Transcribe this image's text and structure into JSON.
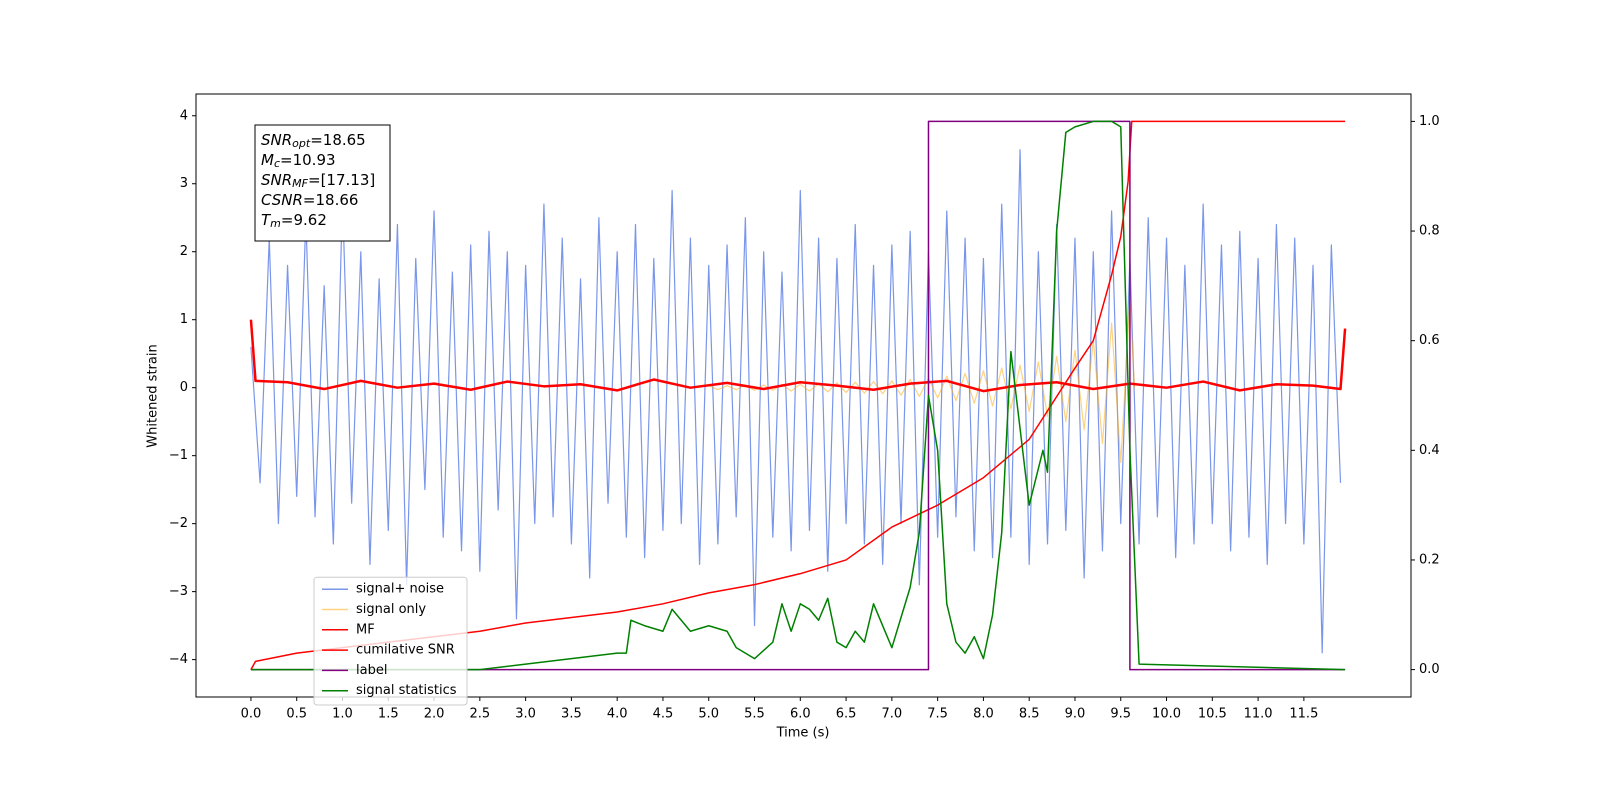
{
  "chart_data": {
    "type": "line",
    "xlabel": "Time (s)",
    "ylabel": "Whitened strain",
    "xlim": [
      -0.6,
      12.67
    ],
    "ylim": [
      -4.55,
      4.32
    ],
    "y2lim": [
      -0.05,
      1.05
    ],
    "xticks": [
      {
        "value": 0,
        "label": "0.0"
      },
      {
        "value": 0.5,
        "label": "0.5"
      },
      {
        "value": 1,
        "label": "1.0"
      },
      {
        "value": 1.5,
        "label": "1.5"
      },
      {
        "value": 2,
        "label": "2.0"
      },
      {
        "value": 2.5,
        "label": "2.5"
      },
      {
        "value": 3,
        "label": "3.0"
      },
      {
        "value": 3.5,
        "label": "3.5"
      },
      {
        "value": 4,
        "label": "4.0"
      },
      {
        "value": 4.5,
        "label": "4.5"
      },
      {
        "value": 5,
        "label": "5.0"
      },
      {
        "value": 5.5,
        "label": "5.5"
      },
      {
        "value": 6,
        "label": "6.0"
      },
      {
        "value": 6.5,
        "label": "6.5"
      },
      {
        "value": 7,
        "label": "7.0"
      },
      {
        "value": 7.5,
        "label": "7.5"
      },
      {
        "value": 8,
        "label": "8.0"
      },
      {
        "value": 8.5,
        "label": "8.5"
      },
      {
        "value": 9,
        "label": "9.0"
      },
      {
        "value": 9.5,
        "label": "9.5"
      },
      {
        "value": 10,
        "label": "10.0"
      },
      {
        "value": 10.5,
        "label": "10.5"
      },
      {
        "value": 11,
        "label": "11.0"
      },
      {
        "value": 11.5,
        "label": "11.5"
      }
    ],
    "yticks": [
      {
        "value": -4,
        "label": "−4"
      },
      {
        "value": -3,
        "label": "−3"
      },
      {
        "value": -2,
        "label": "−2"
      },
      {
        "value": -1,
        "label": "−1"
      },
      0,
      1,
      2,
      3,
      4
    ],
    "y2ticks": [
      {
        "value": 0,
        "label": "0.0"
      },
      {
        "value": 0.2,
        "label": "0.2"
      },
      {
        "value": 0.4,
        "label": "0.4"
      },
      {
        "value": 0.6,
        "label": "0.6"
      },
      {
        "value": 0.8,
        "label": "0.8"
      },
      {
        "value": 1,
        "label": "1.0"
      }
    ],
    "legend": "lower left",
    "annotations": [
      {
        "base": "SNR",
        "sub": "opt",
        "text": "=18.65"
      },
      {
        "base": "M",
        "sub": "c",
        "text": "=10.93"
      },
      {
        "base": "SNR",
        "sub": "MF",
        "text": "=[17.13]"
      },
      {
        "base": "CSNR",
        "text": "=18.66"
      },
      {
        "base": "T",
        "sub": "m",
        "text": "=9.62"
      }
    ],
    "series": [
      {
        "name": "signal+ noise",
        "color": "#4169e1",
        "alpha": 0.7,
        "width": 1.2,
        "x": [
          0,
          0.1,
          0.2,
          0.3,
          0.4,
          0.5,
          0.6,
          0.7,
          0.8,
          0.9,
          1,
          1.1,
          1.2,
          1.3,
          1.4,
          1.5,
          1.6,
          1.7,
          1.8,
          1.9,
          2,
          2.1,
          2.2,
          2.3,
          2.4,
          2.5,
          2.6,
          2.7,
          2.8,
          2.9,
          3,
          3.1,
          3.2,
          3.3,
          3.4,
          3.5,
          3.6,
          3.7,
          3.8,
          3.9,
          4,
          4.1,
          4.2,
          4.3,
          4.4,
          4.5,
          4.6,
          4.7,
          4.8,
          4.9,
          5,
          5.1,
          5.2,
          5.3,
          5.4,
          5.5,
          5.6,
          5.7,
          5.8,
          5.9,
          6,
          6.1,
          6.2,
          6.3,
          6.4,
          6.5,
          6.6,
          6.7,
          6.8,
          6.9,
          7,
          7.1,
          7.2,
          7.3,
          7.4,
          7.5,
          7.6,
          7.7,
          7.8,
          7.9,
          8,
          8.1,
          8.2,
          8.3,
          8.4,
          8.5,
          8.6,
          8.7,
          8.8,
          8.9,
          9,
          9.1,
          9.2,
          9.3,
          9.4,
          9.5,
          9.6,
          9.7,
          9.8,
          9.9,
          10,
          10.1,
          10.2,
          10.3,
          10.4,
          10.5,
          10.6,
          10.7,
          10.8,
          10.9,
          11,
          11.1,
          11.2,
          11.3,
          11.4,
          11.5,
          11.6,
          11.7,
          11.8,
          11.9
        ],
        "values": [
          0.6,
          -1.4,
          2.2,
          -2.0,
          1.8,
          -1.6,
          2.5,
          -1.9,
          1.5,
          -2.3,
          2.8,
          -1.7,
          2.0,
          -2.6,
          1.6,
          -2.1,
          2.4,
          -2.9,
          1.9,
          -1.5,
          2.6,
          -2.2,
          1.7,
          -2.4,
          2.1,
          -2.7,
          2.3,
          -1.8,
          2.0,
          -3.4,
          1.8,
          -2.0,
          2.7,
          -1.9,
          2.2,
          -2.3,
          1.6,
          -2.8,
          2.5,
          -1.7,
          2.0,
          -2.2,
          2.4,
          -2.5,
          1.9,
          -2.1,
          2.9,
          -2.0,
          2.2,
          -2.6,
          1.8,
          -2.3,
          2.1,
          -1.9,
          2.5,
          -3.5,
          2.0,
          -2.2,
          1.7,
          -2.4,
          2.9,
          -2.1,
          2.2,
          -2.7,
          1.9,
          -2.0,
          2.4,
          -2.3,
          1.8,
          -2.6,
          2.1,
          -2.0,
          2.3,
          -2.9,
          2.0,
          -2.2,
          2.6,
          -1.9,
          2.2,
          -2.4,
          1.9,
          -2.5,
          2.7,
          -2.2,
          3.5,
          -2.6,
          2.0,
          -2.3,
          2.4,
          -2.1,
          2.2,
          -2.8,
          2.0,
          -2.4,
          2.6,
          -2.0,
          1.9,
          -2.3,
          2.5,
          -1.9,
          2.2,
          -2.5,
          1.8,
          -2.3,
          2.7,
          -2.0,
          2.1,
          -2.4,
          2.3,
          -2.2,
          1.9,
          -2.6,
          2.4,
          -2.0,
          2.2,
          -2.3,
          1.8,
          -3.9,
          2.1,
          -1.4
        ]
      },
      {
        "name": "signal only",
        "color": "#ffa500",
        "alpha": 0.5,
        "width": 1.2,
        "x": [
          5.0,
          5.1,
          5.2,
          5.3,
          5.4,
          5.5,
          5.6,
          5.7,
          5.8,
          5.9,
          6.0,
          6.1,
          6.2,
          6.3,
          6.4,
          6.5,
          6.6,
          6.7,
          6.8,
          6.9,
          7.0,
          7.1,
          7.2,
          7.3,
          7.4,
          7.5,
          7.6,
          7.7,
          7.8,
          7.9,
          8.0,
          8.1,
          8.2,
          8.3,
          8.4,
          8.5,
          8.6,
          8.7,
          8.8,
          8.9,
          9.0,
          9.1,
          9.2,
          9.3,
          9.4,
          9.5,
          9.6,
          9.65
        ],
        "values": [
          0.03,
          -0.03,
          0.03,
          -0.03,
          0.04,
          -0.04,
          0.04,
          -0.04,
          0.05,
          -0.05,
          0.05,
          -0.05,
          0.06,
          -0.06,
          0.07,
          -0.07,
          0.08,
          -0.08,
          0.09,
          -0.09,
          0.1,
          -0.11,
          0.12,
          -0.13,
          0.14,
          -0.15,
          0.17,
          -0.19,
          0.21,
          -0.23,
          0.25,
          -0.27,
          0.29,
          -0.31,
          0.33,
          -0.35,
          0.38,
          -0.42,
          0.46,
          -0.5,
          0.55,
          -0.62,
          0.7,
          -0.82,
          0.95,
          -1.1,
          1.3,
          0
        ]
      },
      {
        "name": "MF",
        "color": "#ff0000",
        "alpha": 1,
        "width": 2.5,
        "x": [
          0,
          0.05,
          0.4,
          0.8,
          1.2,
          1.6,
          2.0,
          2.4,
          2.8,
          3.2,
          3.6,
          4.0,
          4.4,
          4.8,
          5.2,
          5.6,
          6.0,
          6.4,
          6.8,
          7.2,
          7.6,
          8.0,
          8.4,
          8.8,
          9.2,
          9.6,
          10.0,
          10.4,
          10.8,
          11.2,
          11.6,
          11.9,
          11.95
        ],
        "values": [
          1.0,
          0.1,
          0.08,
          -0.02,
          0.1,
          0.0,
          0.06,
          -0.03,
          0.09,
          0.02,
          0.05,
          -0.04,
          0.12,
          0.0,
          0.07,
          -0.02,
          0.08,
          0.03,
          -0.03,
          0.06,
          0.1,
          -0.05,
          0.04,
          0.08,
          -0.02,
          0.06,
          0.0,
          0.09,
          -0.04,
          0.05,
          0.03,
          -0.02,
          0.87
        ]
      },
      {
        "name": "cumilative SNR",
        "color": "#ff0000",
        "alpha": 1,
        "width": 1.5,
        "axis": "y2",
        "x": [
          0,
          0.05,
          0.5,
          1,
          1.5,
          2,
          2.5,
          3,
          3.5,
          4,
          4.5,
          5,
          5.5,
          6,
          6.5,
          7,
          7.5,
          8,
          8.5,
          9,
          9.2,
          9.4,
          9.5,
          9.58,
          9.62,
          11.95
        ],
        "values": [
          0.0,
          0.015,
          0.03,
          0.04,
          0.05,
          0.06,
          0.07,
          0.085,
          0.095,
          0.105,
          0.12,
          0.14,
          0.155,
          0.175,
          0.2,
          0.26,
          0.3,
          0.35,
          0.42,
          0.55,
          0.6,
          0.72,
          0.79,
          0.89,
          1.0,
          1.0
        ]
      },
      {
        "name": "label",
        "color": "#800080",
        "alpha": 1,
        "width": 1.5,
        "axis": "y2",
        "x": [
          0,
          7.4,
          7.4,
          9.6,
          9.6,
          11.95
        ],
        "values": [
          0,
          0,
          1,
          1,
          0,
          0
        ]
      },
      {
        "name": "signal statistics",
        "color": "#008000",
        "alpha": 1,
        "width": 1.5,
        "axis": "y2",
        "x": [
          0,
          2.5,
          3.0,
          3.5,
          4.0,
          4.1,
          4.15,
          4.3,
          4.5,
          4.6,
          4.8,
          5.0,
          5.2,
          5.3,
          5.5,
          5.7,
          5.8,
          5.9,
          6.0,
          6.1,
          6.2,
          6.3,
          6.4,
          6.5,
          6.6,
          6.7,
          6.8,
          7.0,
          7.2,
          7.3,
          7.4,
          7.5,
          7.6,
          7.7,
          7.8,
          7.9,
          8.0,
          8.1,
          8.2,
          8.3,
          8.5,
          8.65,
          8.7,
          8.8,
          8.9,
          9.0,
          9.2,
          9.4,
          9.5,
          9.6,
          9.7,
          11.95
        ],
        "values": [
          0,
          0,
          0.01,
          0.02,
          0.03,
          0.03,
          0.09,
          0.08,
          0.07,
          0.11,
          0.07,
          0.08,
          0.07,
          0.04,
          0.02,
          0.05,
          0.12,
          0.07,
          0.12,
          0.11,
          0.09,
          0.13,
          0.05,
          0.04,
          0.07,
          0.05,
          0.12,
          0.04,
          0.15,
          0.25,
          0.5,
          0.4,
          0.12,
          0.05,
          0.03,
          0.06,
          0.02,
          0.1,
          0.25,
          0.58,
          0.3,
          0.4,
          0.36,
          0.8,
          0.98,
          0.99,
          1.0,
          1.0,
          0.99,
          0.4,
          0.01,
          0
        ]
      }
    ]
  }
}
